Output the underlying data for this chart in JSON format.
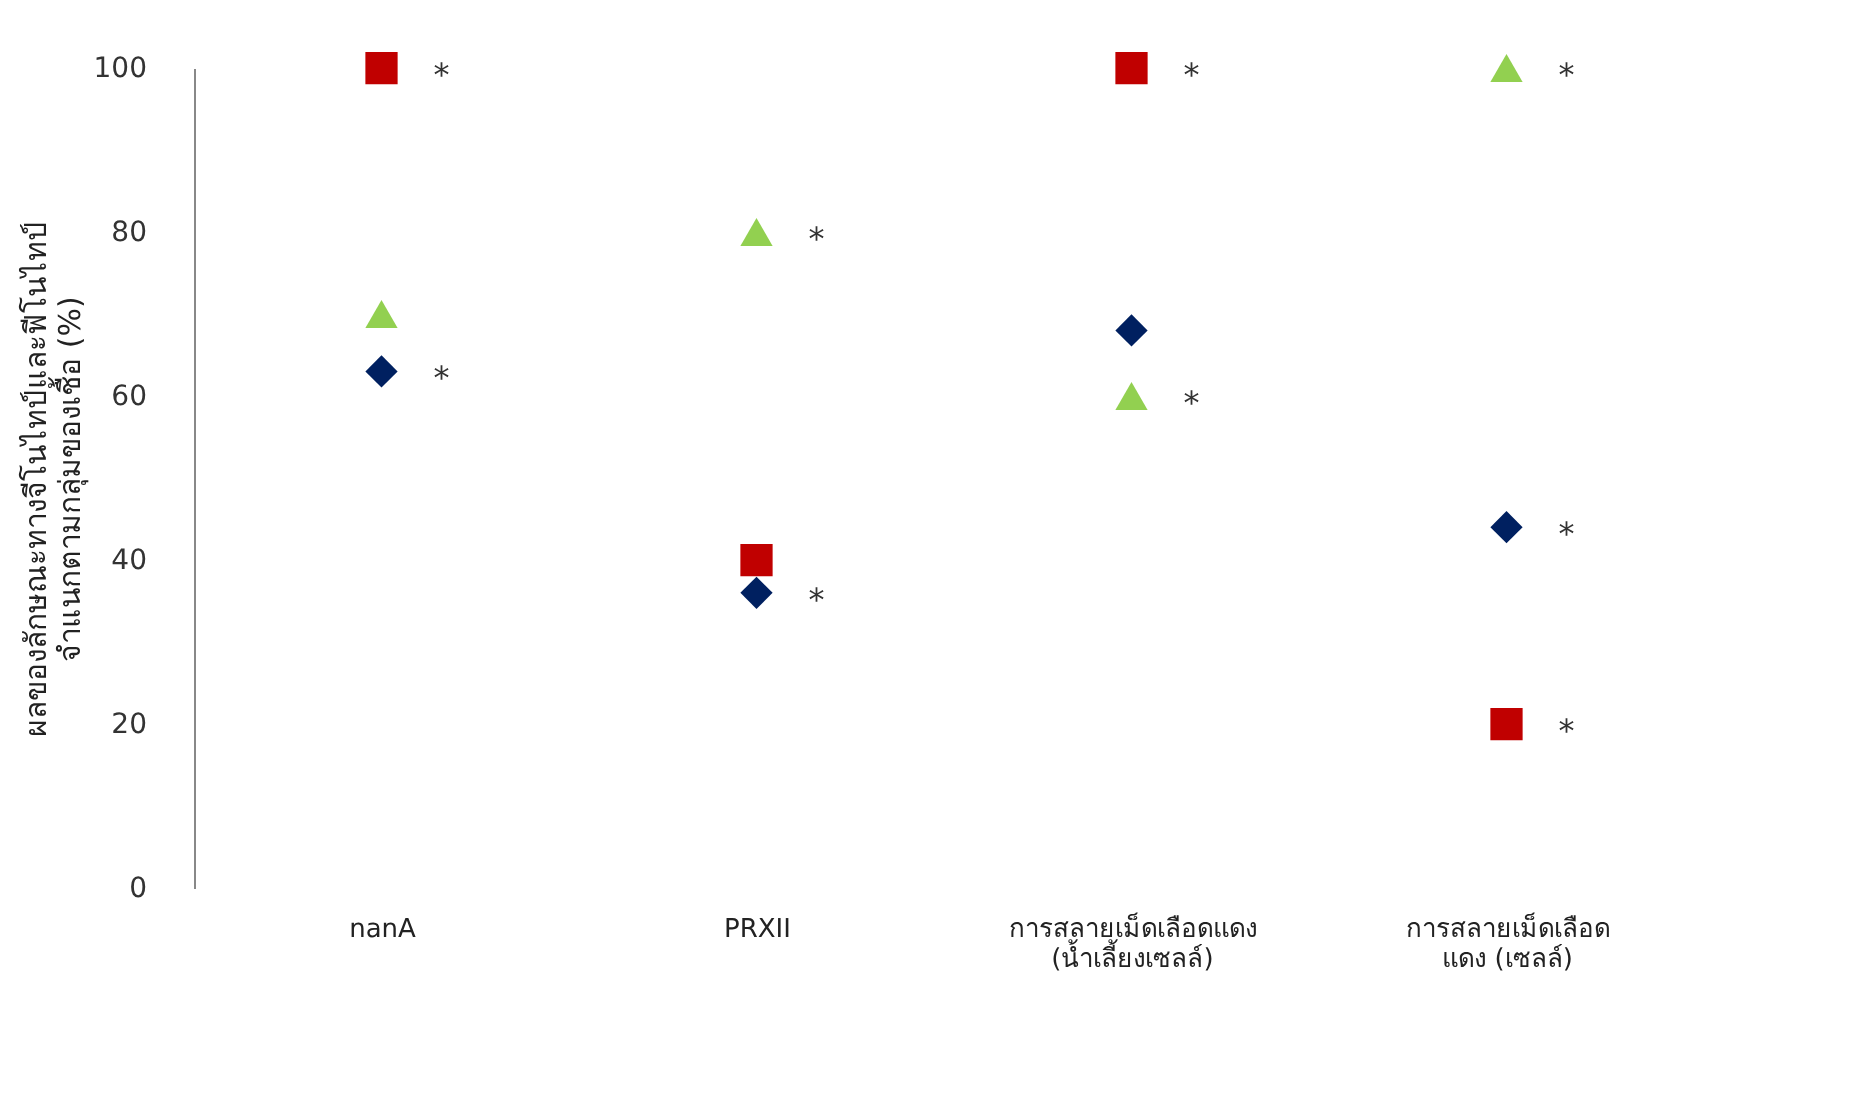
{
  "chart_data": {
    "type": "scatter",
    "ylabel": "ผลของลักษณะทางจีโนไทป์และฟีโนไทป์\nจำแนกตามกลุ่มของเชื้อ (%)",
    "categories": [
      "nanA",
      "PRXII",
      "การสลายเม็ดเลือดแดง\n(น้ำเลี้ยงเซลล์)",
      "การสลายเม็ดเลือด\nแดง (เซลล์)"
    ],
    "series": [
      {
        "color": "#002060",
        "marker": "diamond",
        "values": [
          63,
          36,
          68,
          44
        ]
      },
      {
        "color": "#c00000",
        "marker": "square",
        "values": [
          100,
          40,
          100,
          20
        ]
      },
      {
        "color": "#92d050",
        "marker": "triangle",
        "values": [
          70,
          80,
          60,
          100
        ]
      }
    ],
    "ylim": [
      0,
      100
    ],
    "yticks": [
      0,
      20,
      40,
      60,
      80,
      100
    ],
    "grid": false,
    "annotations": [
      {
        "text": "*",
        "x": "nanA",
        "y": 100
      },
      {
        "text": "*",
        "x": "nanA",
        "y": 63
      },
      {
        "text": "*",
        "x": "PRXII",
        "y": 80
      },
      {
        "text": "*",
        "x": "PRXII",
        "y": 36
      },
      {
        "text": "*",
        "x": "การสลายเม็ดเลือดแดง\n(น้ำเลี้ยงเซลล์)",
        "y": 100
      },
      {
        "text": "*",
        "x": "การสลายเม็ดเลือดแดง\n(น้ำเลี้ยงเซลล์)",
        "y": 60
      },
      {
        "text": "*",
        "x": "การสลายเม็ดเลือด\nแดง (เซลล์)",
        "y": 100
      },
      {
        "text": "*",
        "x": "การสลายเม็ดเลือด\nแดง (เซลล์)",
        "y": 44
      },
      {
        "text": "*",
        "x": "การสลายเม็ดเลือด\nแดง (เซลล์)",
        "y": 20
      }
    ]
  }
}
